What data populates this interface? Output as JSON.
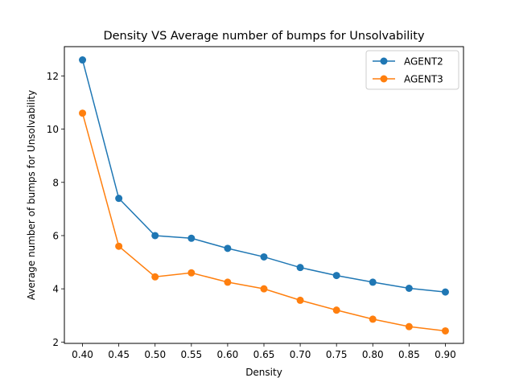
{
  "chart_data": {
    "type": "line",
    "title": "Density VS Average number of bumps for Unsolvability",
    "xlabel": "Density",
    "ylabel": "Average number of bumps for Unsolvability",
    "x": [
      0.4,
      0.45,
      0.5,
      0.55,
      0.6,
      0.65,
      0.7,
      0.75,
      0.8,
      0.85,
      0.9
    ],
    "x_tick_labels": [
      "0.40",
      "0.45",
      "0.50",
      "0.55",
      "0.60",
      "0.65",
      "0.70",
      "0.75",
      "0.80",
      "0.85",
      "0.90"
    ],
    "y_ticks": [
      2,
      4,
      6,
      8,
      10,
      12
    ],
    "y_tick_labels": [
      "2",
      "4",
      "6",
      "8",
      "10",
      "12"
    ],
    "xlim": [
      0.375,
      0.925
    ],
    "ylim": [
      1.95,
      13.1
    ],
    "grid": false,
    "legend_position": "top-right",
    "series": [
      {
        "name": "AGENT2",
        "color": "#1f77b4",
        "values": [
          12.6,
          7.4,
          6.0,
          5.9,
          5.52,
          5.2,
          4.8,
          4.5,
          4.25,
          4.02,
          3.88
        ]
      },
      {
        "name": "AGENT3",
        "color": "#ff7f0e",
        "values": [
          10.6,
          5.6,
          4.45,
          4.6,
          4.25,
          4.0,
          3.57,
          3.2,
          2.86,
          2.58,
          2.42
        ]
      }
    ]
  }
}
